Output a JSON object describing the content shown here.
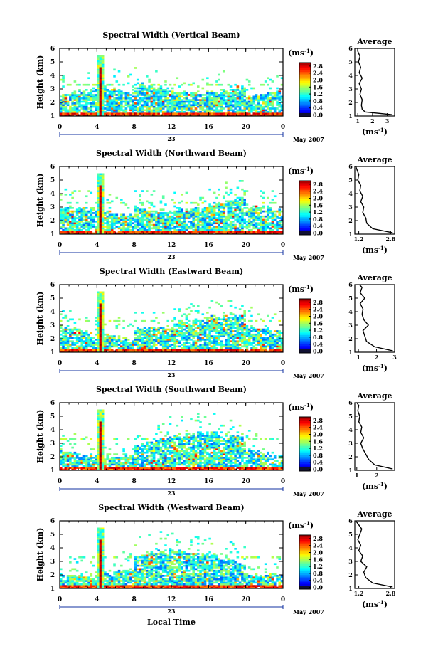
{
  "figure": {
    "date_label": "May 2007",
    "day_label": "23",
    "xlabel": "Local Time",
    "avg_title": "Average",
    "unit_label": "(ms",
    "unit_exp": "-1"
  },
  "chart_data": [
    {
      "type": "heatmap",
      "title": "Spectral Width (Vertical Beam)",
      "ylabel": "Height (km)",
      "x_ticks": [
        "0",
        "4",
        "8",
        "12",
        "16",
        "20",
        "0"
      ],
      "y_ticks": [
        "1",
        "2",
        "3",
        "4",
        "5",
        "6"
      ],
      "ylim": [
        1,
        6
      ],
      "xlim": [
        0,
        24
      ],
      "colorbar": {
        "unit": "(ms-1)",
        "ticks": [
          "0.0",
          "0.4",
          "0.8",
          "1.2",
          "1.6",
          "2.0",
          "2.4",
          "2.8"
        ],
        "range": [
          0,
          3.0
        ]
      },
      "average": {
        "x_ticks": [
          "1",
          "2",
          "3"
        ],
        "xlim": [
          0.8,
          3.5
        ],
        "ylim": [
          1,
          6
        ],
        "height": [
          1.1,
          1.3,
          1.5,
          1.8,
          2.2,
          2.6,
          3.0,
          3.4,
          3.8,
          4.2,
          4.6,
          5.0,
          5.4,
          5.8,
          6.0
        ],
        "width": [
          3.3,
          1.5,
          1.3,
          1.25,
          1.3,
          1.15,
          1.25,
          1.1,
          1.3,
          1.1,
          1.2,
          1.05,
          1.15,
          1.0,
          1.0
        ]
      }
    },
    {
      "type": "heatmap",
      "title": "Spectral Width (Northward Beam)",
      "ylabel": "Height (km)",
      "x_ticks": [
        "0",
        "4",
        "8",
        "12",
        "16",
        "20",
        "0"
      ],
      "y_ticks": [
        "1",
        "2",
        "3",
        "4",
        "5",
        "6"
      ],
      "ylim": [
        1,
        6
      ],
      "xlim": [
        0,
        24
      ],
      "colorbar": {
        "unit": "(ms-1)",
        "ticks": [
          "0.0",
          "0.4",
          "0.8",
          "1.2",
          "1.6",
          "2.0",
          "2.4",
          "2.8"
        ],
        "range": [
          0,
          3.0
        ]
      },
      "average": {
        "x_ticks": [
          "1.2",
          "2.8"
        ],
        "xlim": [
          1.0,
          3.0
        ],
        "ylim": [
          1,
          6
        ],
        "height": [
          1.1,
          1.4,
          1.8,
          2.2,
          2.6,
          3.0,
          3.4,
          3.8,
          4.2,
          4.6,
          5.0,
          5.4,
          5.8,
          6.0
        ],
        "width": [
          2.9,
          1.9,
          1.6,
          1.55,
          1.4,
          1.45,
          1.3,
          1.4,
          1.25,
          1.3,
          1.15,
          1.2,
          1.1,
          1.05
        ]
      }
    },
    {
      "type": "heatmap",
      "title": "Spectral Width (Eastward Beam)",
      "ylabel": "Height (km)",
      "x_ticks": [
        "0",
        "4",
        "8",
        "12",
        "16",
        "20",
        "0"
      ],
      "y_ticks": [
        "1",
        "2",
        "3",
        "4",
        "5",
        "6"
      ],
      "ylim": [
        1,
        6
      ],
      "xlim": [
        0,
        24
      ],
      "colorbar": {
        "unit": "(ms-1)",
        "ticks": [
          "0.0",
          "0.4",
          "0.8",
          "1.2",
          "1.6",
          "2.0",
          "2.4",
          "2.8"
        ],
        "range": [
          0,
          3.0
        ]
      },
      "average": {
        "x_ticks": [
          "1",
          "2",
          "3"
        ],
        "xlim": [
          0.8,
          3.0
        ],
        "ylim": [
          1,
          6
        ],
        "height": [
          1.1,
          1.4,
          1.8,
          2.2,
          2.6,
          3.0,
          3.4,
          3.8,
          4.2,
          4.6,
          5.0,
          5.4,
          5.8,
          6.0
        ],
        "width": [
          2.9,
          1.9,
          1.45,
          1.35,
          1.25,
          1.55,
          1.3,
          1.2,
          1.25,
          1.1,
          1.35,
          1.1,
          1.2,
          1.05
        ]
      }
    },
    {
      "type": "heatmap",
      "title": "Spectral Width (Southward Beam)",
      "ylabel": "Height (km)",
      "x_ticks": [
        "0",
        "4",
        "8",
        "12",
        "16",
        "20",
        "0"
      ],
      "y_ticks": [
        "1",
        "2",
        "3",
        "4",
        "5",
        "6"
      ],
      "ylim": [
        1,
        6
      ],
      "xlim": [
        0,
        24
      ],
      "colorbar": {
        "unit": "(ms-1)",
        "ticks": [
          "0.0",
          "0.4",
          "0.8",
          "1.2",
          "1.6",
          "2.0",
          "2.4",
          "2.8"
        ],
        "range": [
          0,
          3.0
        ]
      },
      "average": {
        "x_ticks": [
          "1",
          "2"
        ],
        "xlim": [
          0.9,
          2.9
        ],
        "ylim": [
          1,
          6
        ],
        "height": [
          1.1,
          1.4,
          1.8,
          2.2,
          2.6,
          3.0,
          3.4,
          3.8,
          4.2,
          4.6,
          5.0,
          5.4,
          5.8,
          6.0
        ],
        "width": [
          2.8,
          1.9,
          1.6,
          1.45,
          1.3,
          1.2,
          1.35,
          1.2,
          1.25,
          1.1,
          1.15,
          1.05,
          1.1,
          1.0
        ]
      }
    },
    {
      "type": "heatmap",
      "title": "Spectral Width (Westward Beam)",
      "ylabel": "Height (km)",
      "x_ticks": [
        "0",
        "4",
        "8",
        "12",
        "16",
        "20",
        "0"
      ],
      "y_ticks": [
        "1",
        "2",
        "3",
        "4",
        "5",
        "6"
      ],
      "ylim": [
        1,
        6
      ],
      "xlim": [
        0,
        24
      ],
      "colorbar": {
        "unit": "(ms-1)",
        "ticks": [
          "0.0",
          "0.4",
          "0.8",
          "1.2",
          "1.6",
          "2.0",
          "2.4",
          "2.8"
        ],
        "range": [
          0,
          3.0
        ]
      },
      "average": {
        "x_ticks": [
          "1.2",
          "2.8"
        ],
        "xlim": [
          1.0,
          3.0
        ],
        "ylim": [
          1,
          6
        ],
        "height": [
          1.1,
          1.4,
          1.8,
          2.2,
          2.6,
          3.0,
          3.4,
          3.8,
          4.2,
          4.6,
          5.0,
          5.4,
          5.8,
          6.0
        ],
        "width": [
          2.9,
          1.9,
          1.55,
          1.45,
          1.6,
          1.3,
          1.4,
          1.2,
          1.3,
          1.15,
          1.25,
          1.35,
          1.15,
          1.05
        ]
      }
    }
  ]
}
